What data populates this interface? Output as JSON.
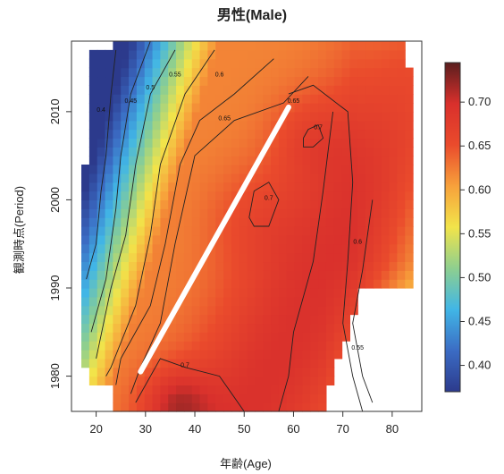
{
  "chart_data": {
    "type": "heatmap",
    "title": "男性(Male)",
    "xlabel": "年齢(Age)",
    "ylabel": "観測時点(Period)",
    "xlim": [
      15,
      86
    ],
    "ylim": [
      1976,
      2018
    ],
    "x_ticks": [
      20,
      30,
      40,
      50,
      60,
      70,
      80
    ],
    "y_ticks": [
      1980,
      1990,
      2000,
      2010
    ],
    "color_scale": {
      "min": 0.37,
      "max": 0.745,
      "ticks": [
        0.4,
        0.45,
        0.5,
        0.55,
        0.6,
        0.65,
        0.7
      ],
      "tick_labels": [
        "0.40",
        "0.45",
        "0.50",
        "0.55",
        "0.60",
        "0.65",
        "0.70"
      ],
      "colors": [
        "#2c3a8c",
        "#3b6cc4",
        "#41b6e6",
        "#8ecf8f",
        "#f2e44a",
        "#f7a13b",
        "#ea4b2c",
        "#d9302c",
        "#5a1e1e"
      ]
    },
    "contour_levels": [
      0.4,
      0.45,
      0.5,
      0.55,
      0.6,
      0.65,
      0.7
    ],
    "contour_label_texts": [
      "0.4",
      "0.45",
      "0.5",
      "0.55",
      "0.6",
      "0.65",
      "0.7",
      "0.7",
      "0.7",
      "0.65",
      "0.6",
      "0.55"
    ],
    "cohort_line": {
      "start": [
        29,
        1980.5
      ],
      "end": [
        59,
        2010.5
      ],
      "color": "#ffffff"
    },
    "grid": false,
    "legend": "right colorbar"
  }
}
